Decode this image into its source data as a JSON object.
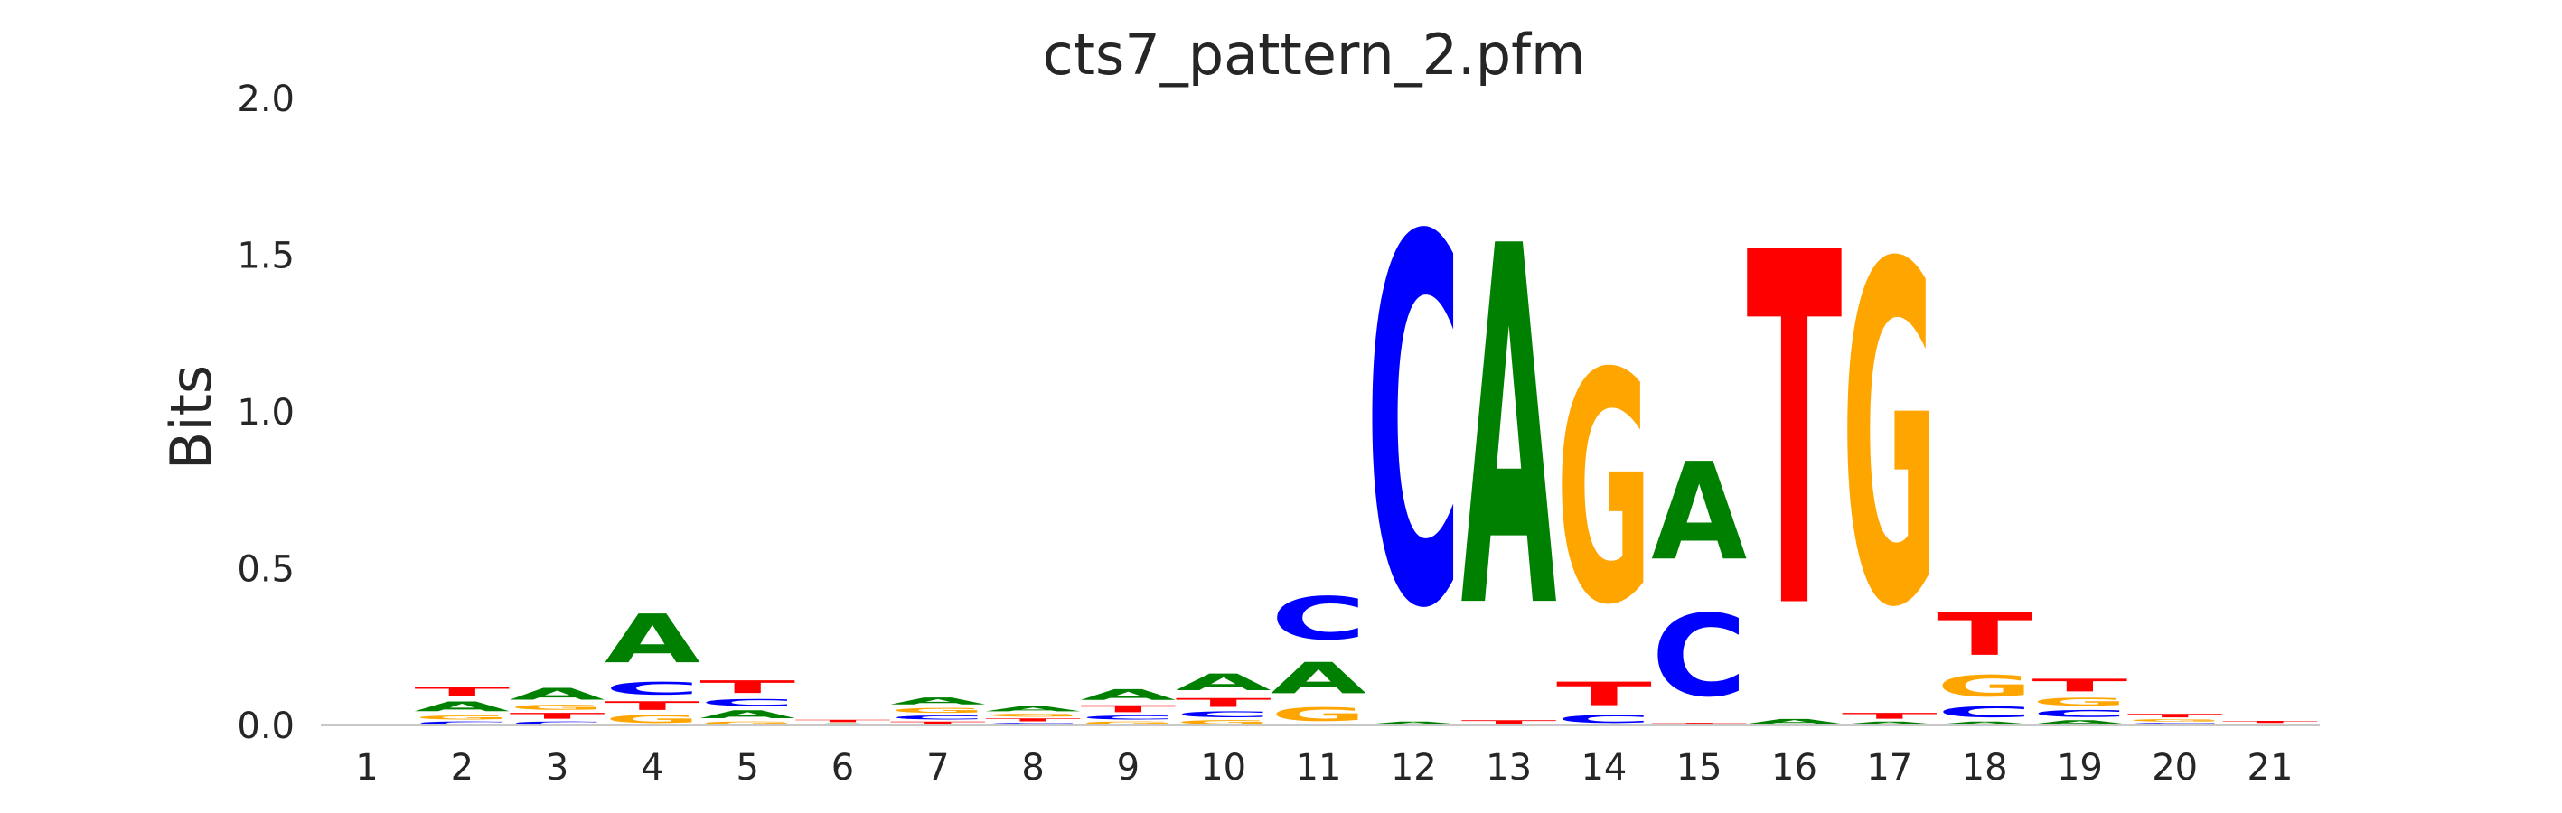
{
  "chart_data": {
    "type": "sequence-logo",
    "title": "cts7_pattern_2.pfm",
    "ylabel": "Bits",
    "xlabel": "",
    "ylim": [
      0,
      2.0
    ],
    "y_ticks": [
      "0.0",
      "0.5",
      "1.0",
      "1.5",
      "2.0"
    ],
    "y_tick_values": [
      0,
      0.5,
      1.0,
      1.5,
      2.0
    ],
    "grid": false,
    "colors": {
      "A": "#008000",
      "C": "#0000ff",
      "G": "#ffa500",
      "T": "#ff0000"
    },
    "positions": [
      {
        "label": "1",
        "stack": []
      },
      {
        "label": "2",
        "stack": [
          [
            "C",
            0.015
          ],
          [
            "G",
            0.02
          ],
          [
            "A",
            0.05
          ],
          [
            "T",
            0.045
          ]
        ]
      },
      {
        "label": "3",
        "stack": [
          [
            "C",
            0.015
          ],
          [
            "T",
            0.03
          ],
          [
            "G",
            0.025
          ],
          [
            "A",
            0.06
          ]
        ]
      },
      {
        "label": "4",
        "stack": [
          [
            "G",
            0.04
          ],
          [
            "T",
            0.045
          ],
          [
            "C",
            0.065
          ],
          [
            "A",
            0.25
          ]
        ]
      },
      {
        "label": "5",
        "stack": [
          [
            "G",
            0.015
          ],
          [
            "A",
            0.04
          ],
          [
            "C",
            0.035
          ],
          [
            "T",
            0.065
          ]
        ]
      },
      {
        "label": "6",
        "stack": [
          [
            "A",
            0.008
          ],
          [
            "T",
            0.012
          ]
        ]
      },
      {
        "label": "7",
        "stack": [
          [
            "T",
            0.015
          ],
          [
            "C",
            0.02
          ],
          [
            "G",
            0.025
          ],
          [
            "A",
            0.035
          ]
        ]
      },
      {
        "label": "8",
        "stack": [
          [
            "C",
            0.01
          ],
          [
            "T",
            0.015
          ],
          [
            "G",
            0.015
          ],
          [
            "A",
            0.025
          ]
        ]
      },
      {
        "label": "9",
        "stack": [
          [
            "G",
            0.015
          ],
          [
            "C",
            0.02
          ],
          [
            "T",
            0.035
          ],
          [
            "A",
            0.055
          ]
        ]
      },
      {
        "label": "10",
        "stack": [
          [
            "G",
            0.02
          ],
          [
            "C",
            0.03
          ],
          [
            "T",
            0.045
          ],
          [
            "A",
            0.085
          ]
        ]
      },
      {
        "label": "11",
        "stack": [
          [
            "G",
            0.07
          ],
          [
            "A",
            0.16
          ],
          [
            "C",
            0.22
          ]
        ]
      },
      {
        "label": "12",
        "stack": [
          [
            "A",
            0.015
          ],
          [
            "C",
            1.88
          ]
        ]
      },
      {
        "label": "13",
        "stack": [
          [
            "T",
            0.02
          ],
          [
            "A",
            1.84
          ]
        ]
      },
      {
        "label": "14",
        "stack": [
          [
            "C",
            0.04
          ],
          [
            "T",
            0.12
          ],
          [
            "G",
            1.18
          ]
        ]
      },
      {
        "label": "15",
        "stack": [
          [
            "T",
            0.01
          ],
          [
            "C",
            0.42
          ],
          [
            "A",
            0.5
          ]
        ]
      },
      {
        "label": "16",
        "stack": [
          [
            "A",
            0.025
          ],
          [
            "T",
            1.81
          ]
        ]
      },
      {
        "label": "17",
        "stack": [
          [
            "A",
            0.015
          ],
          [
            "T",
            0.03
          ],
          [
            "G",
            1.74
          ]
        ]
      },
      {
        "label": "18",
        "stack": [
          [
            "A",
            0.015
          ],
          [
            "C",
            0.055
          ],
          [
            "G",
            0.11
          ],
          [
            "T",
            0.22
          ]
        ]
      },
      {
        "label": "19",
        "stack": [
          [
            "A",
            0.02
          ],
          [
            "C",
            0.035
          ],
          [
            "G",
            0.04
          ],
          [
            "T",
            0.065
          ]
        ]
      },
      {
        "label": "20",
        "stack": [
          [
            "C",
            0.01
          ],
          [
            "G",
            0.012
          ],
          [
            "T",
            0.018
          ]
        ]
      },
      {
        "label": "21",
        "stack": [
          [
            "C",
            0.006
          ],
          [
            "T",
            0.01
          ]
        ]
      }
    ]
  }
}
